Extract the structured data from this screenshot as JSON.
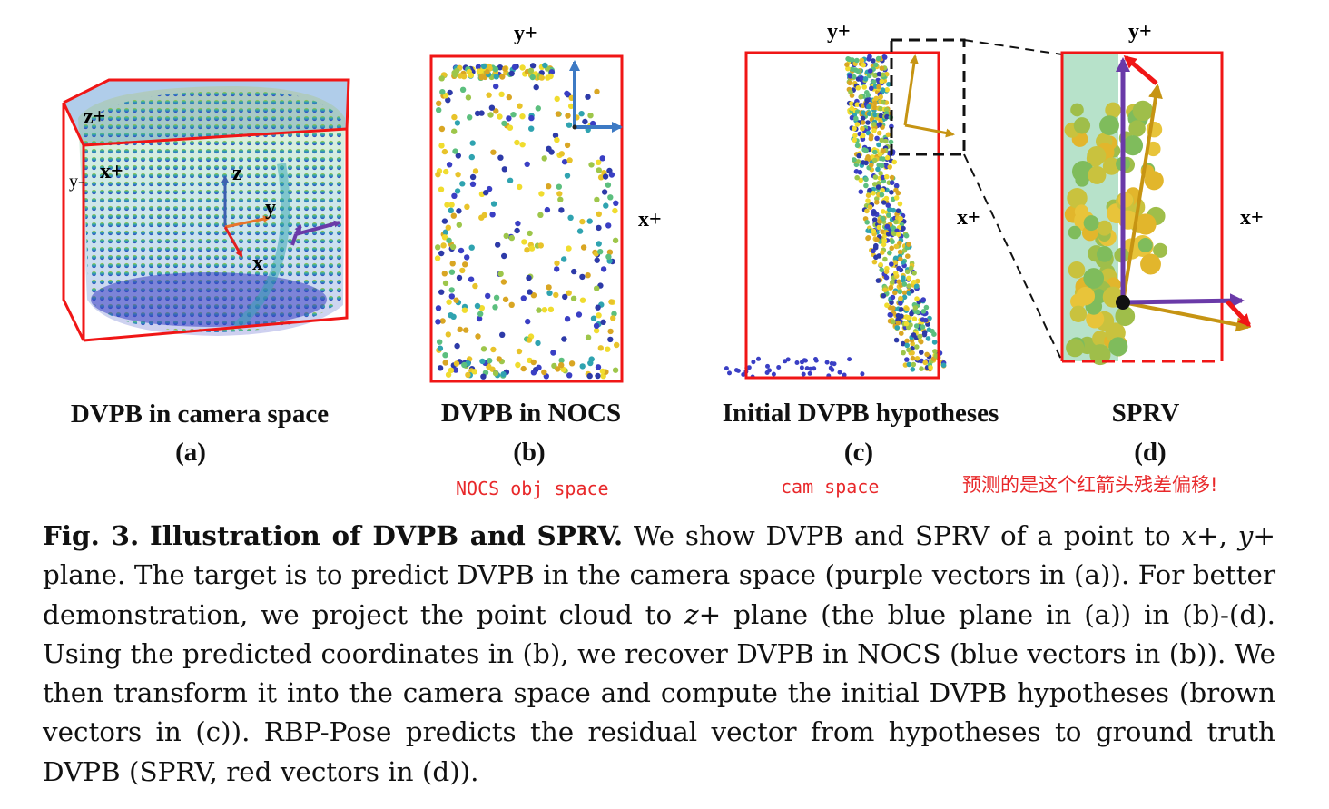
{
  "panels": {
    "a": {
      "title": "DVPB in camera space",
      "letter": "(a)",
      "labels": {
        "zplus": "z+",
        "xplus": "x+",
        "yminus": "y-",
        "z": "z",
        "y": "y",
        "x": "x"
      }
    },
    "b": {
      "title": "DVPB in NOCS",
      "letter": "(b)",
      "note": "NOCS obj space",
      "labels": {
        "yplus": "y+",
        "xplus": "x+"
      }
    },
    "c": {
      "title": "Initial DVPB hypotheses",
      "letter": "(c)",
      "note": "cam space",
      "labels": {
        "yplus": "y+",
        "xplus": "x+"
      }
    },
    "d": {
      "title": "SPRV",
      "letter": "(d)",
      "note": "预测的是这个红箭头残差偏移!",
      "labels": {
        "yplus": "y+",
        "xplus": "x+"
      }
    }
  },
  "caption": {
    "label": "Fig. 3.",
    "heading": "Illustration of DVPB and SPRV.",
    "s1": "We show DVPB and SPRV of a point to",
    "m1": "x+",
    "s2": ",",
    "m2": "y+",
    "s3": "plane. The target is to predict DVPB in the camera space (purple vectors in (a)). For better demonstration, we project the point cloud to",
    "m3": "z+",
    "s4": "plane (the blue plane in (a)) in (b)-(d). Using the predicted coordinates in (b), we recover DVPB in NOCS (blue vectors in (b)). We then transform it into the camera space and compute the initial DVPB hypotheses (brown vectors in (c)). RBP-Pose predicts the residual vector from hypotheses to ground truth DVPB (SPRV, red vectors in (d))."
  },
  "colors": {
    "frame": "#f01616",
    "purple": "#6a3aa8",
    "brown": "#c69413",
    "blue_vec": "#3d7ac4",
    "plane": "#a7c8e8",
    "note": "#e8282a"
  }
}
